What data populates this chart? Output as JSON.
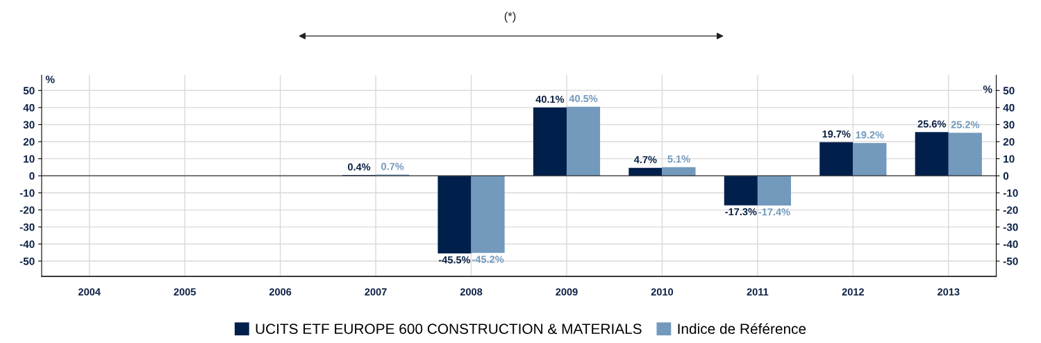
{
  "chart_data": {
    "type": "bar",
    "categories": [
      "2004",
      "2005",
      "2006",
      "2007",
      "2008",
      "2009",
      "2010",
      "2011",
      "2012",
      "2013"
    ],
    "series": [
      {
        "name": "UCITS ETF EUROPE 600 CONSTRUCTION & MATERIALS",
        "color": "#001f4b",
        "values": [
          null,
          null,
          null,
          0.4,
          -45.5,
          40.1,
          4.7,
          -17.3,
          19.7,
          25.6
        ],
        "value_labels": [
          null,
          null,
          null,
          "0.4%",
          "-45.5%",
          "40.1%",
          "4.7%",
          "-17.3%",
          "19.7%",
          "25.6%"
        ]
      },
      {
        "name": "Indice de Référence",
        "color": "#7399bd",
        "values": [
          null,
          null,
          null,
          0.7,
          -45.2,
          40.5,
          5.1,
          -17.4,
          19.2,
          25.2
        ],
        "value_labels": [
          null,
          null,
          null,
          "0.7%",
          "-45.2%",
          "40.5%",
          "5.1%",
          "-17.4%",
          "19.2%",
          "25.2%"
        ]
      }
    ],
    "ylabel": "%",
    "y2label": "%",
    "ylim": [
      -59,
      59
    ],
    "yticks": [
      -50,
      -40,
      -30,
      -20,
      -10,
      0,
      10,
      20,
      30,
      40,
      50
    ],
    "y2lim": [
      -59,
      59
    ],
    "y2ticks": [
      -50,
      -40,
      -30,
      -20,
      -10,
      0,
      10,
      20,
      30,
      40,
      50
    ],
    "annotations": [
      "(*)"
    ],
    "grid": true,
    "legend": "bottom"
  }
}
